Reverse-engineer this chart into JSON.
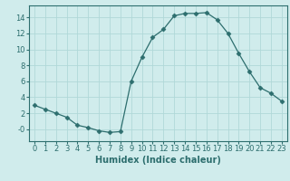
{
  "x": [
    0,
    1,
    2,
    3,
    4,
    5,
    6,
    7,
    8,
    9,
    10,
    11,
    12,
    13,
    14,
    15,
    16,
    17,
    18,
    19,
    20,
    21,
    22,
    23
  ],
  "y": [
    3.0,
    2.5,
    2.0,
    1.5,
    0.5,
    0.2,
    -0.2,
    -0.4,
    -0.3,
    6.0,
    9.0,
    11.5,
    12.5,
    14.2,
    14.5,
    14.5,
    14.6,
    13.7,
    12.0,
    9.5,
    7.2,
    5.2,
    4.5,
    3.5
  ],
  "line_color": "#2d6e6e",
  "marker": "D",
  "marker_size": 2.5,
  "background_color": "#d0ecec",
  "grid_color": "#b0d8d8",
  "xlabel": "Humidex (Indice chaleur)",
  "xlim": [
    -0.5,
    23.5
  ],
  "ylim": [
    -1.5,
    15.5
  ],
  "xticks": [
    0,
    1,
    2,
    3,
    4,
    5,
    6,
    7,
    8,
    9,
    10,
    11,
    12,
    13,
    14,
    15,
    16,
    17,
    18,
    19,
    20,
    21,
    22,
    23
  ],
  "yticks": [
    0,
    2,
    4,
    6,
    8,
    10,
    12,
    14
  ],
  "ytick_labels": [
    "-0",
    "2",
    "4",
    "6",
    "8",
    "10",
    "12",
    "14"
  ],
  "label_fontsize": 7,
  "tick_fontsize": 6
}
